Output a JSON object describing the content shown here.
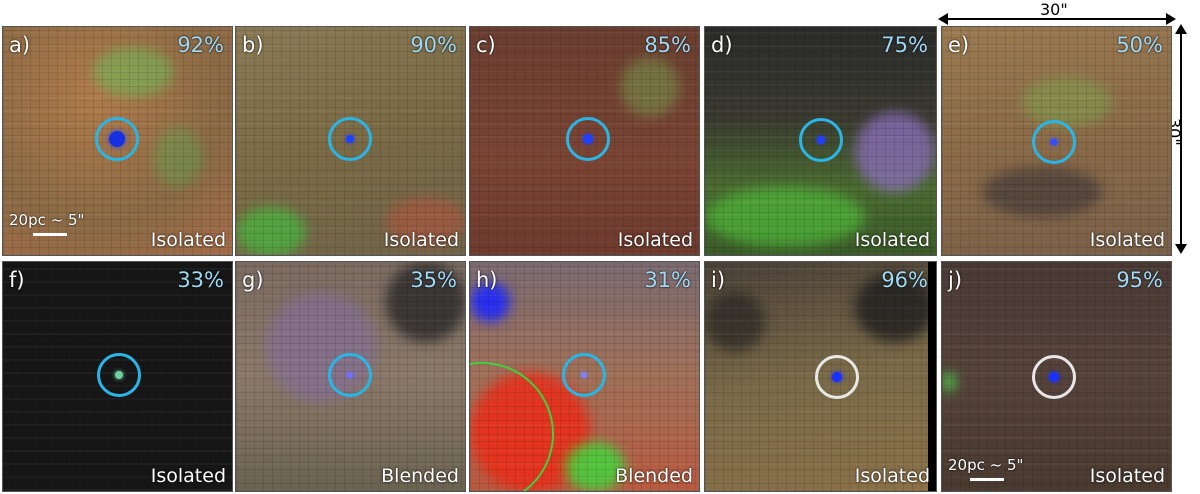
{
  "dimension": {
    "width_label": "30\"",
    "height_label": "30\""
  },
  "scalebar_label": "20pc ~ 5\"",
  "panels": [
    {
      "label": "a)",
      "percent": "92%",
      "status": "Isolated"
    },
    {
      "label": "b)",
      "percent": "90%",
      "status": "Isolated"
    },
    {
      "label": "c)",
      "percent": "85%",
      "status": "Isolated"
    },
    {
      "label": "d)",
      "percent": "75%",
      "status": "Isolated"
    },
    {
      "label": "e)",
      "percent": "50%",
      "status": "Isolated"
    },
    {
      "label": "f)",
      "percent": "33%",
      "status": "Isolated"
    },
    {
      "label": "g)",
      "percent": "35%",
      "status": "Blended"
    },
    {
      "label": "h)",
      "percent": "31%",
      "status": "Blended"
    },
    {
      "label": "i)",
      "percent": "96%",
      "status": "Isolated"
    },
    {
      "label": "j)",
      "percent": "95%",
      "status": "Isolated"
    }
  ],
  "colors": {
    "circle": "#29b6e6",
    "circle_alt": "#e8e8e8",
    "percent_text": "#9fd9f5"
  }
}
